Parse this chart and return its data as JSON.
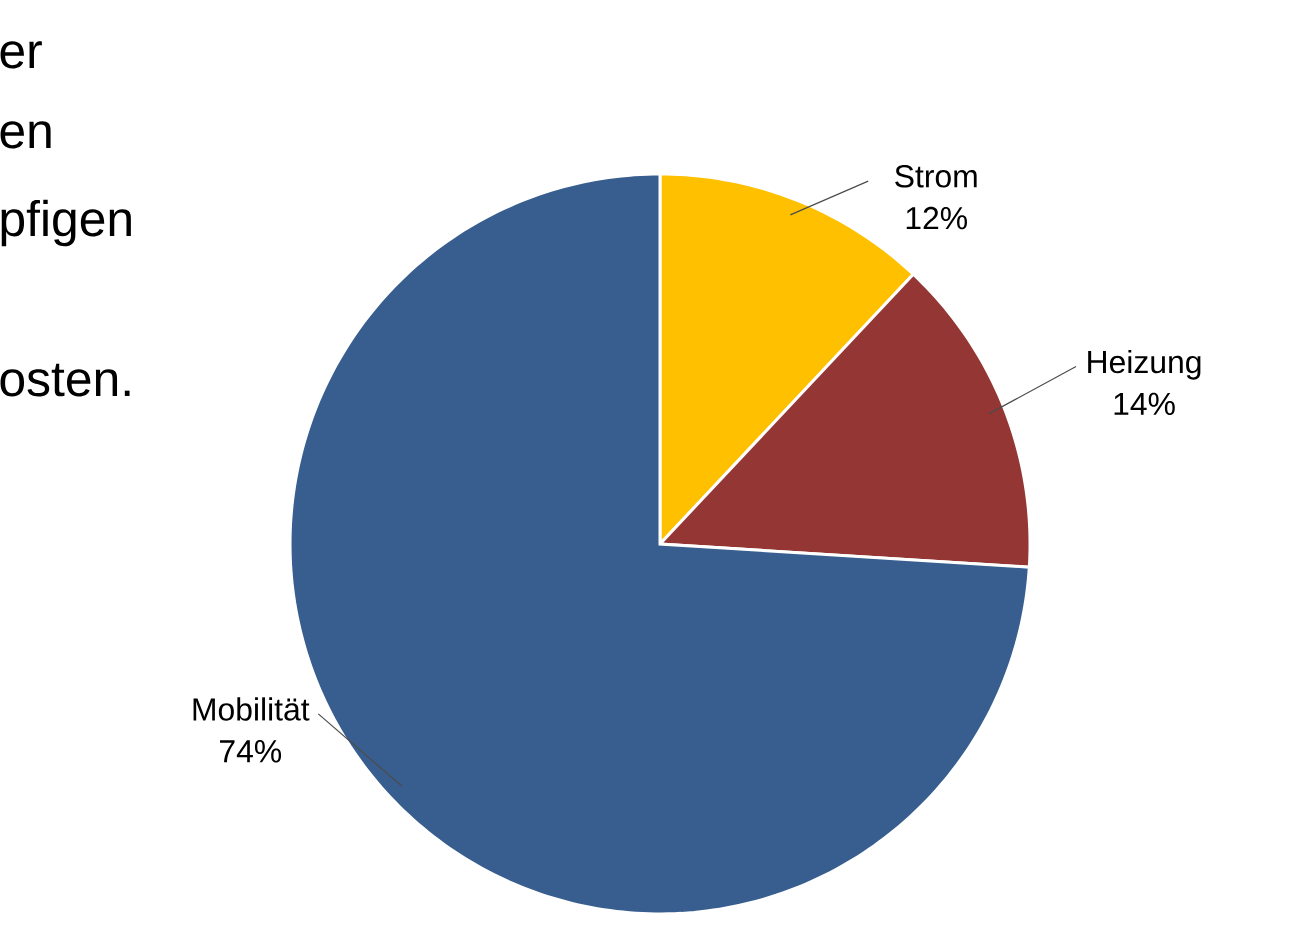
{
  "chart_data": {
    "type": "pie",
    "categories": [
      "Strom",
      "Heizung",
      "Mobilität"
    ],
    "values": [
      12,
      14,
      74
    ],
    "value_labels": [
      "12%",
      "14%",
      "74%"
    ],
    "colors": [
      "#ffc000",
      "#943634",
      "#375e8f"
    ],
    "annotations": [
      "er",
      "en",
      "pfigen",
      "osten."
    ]
  }
}
